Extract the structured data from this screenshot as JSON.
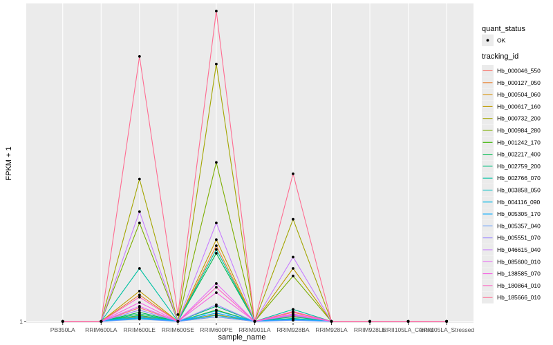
{
  "chart_data": {
    "type": "line",
    "title": "",
    "xlabel": "sample_name",
    "ylabel": "FPKM + 1",
    "y_tick_labels": [
      {
        "value": 1,
        "label": "1"
      }
    ],
    "ylim": [
      0.8,
      43
    ],
    "categories": [
      "PB350LA",
      "RRIM600LA",
      "RRIM600LE",
      "RRIM600SE",
      "RRIM600PE",
      "RRIM901LA",
      "RRIM928BA",
      "RRIM928LA",
      "RRIM928LE",
      "RRII105LA_Control",
      "RRII105LA_Stressed"
    ],
    "grid": true,
    "legend_position": "right",
    "legends": [
      {
        "title": "quant_status",
        "entries": [
          "OK"
        ]
      },
      {
        "title": "tracking_id"
      }
    ],
    "series": [
      {
        "name": "Hb_000046_550",
        "color": "#F8766D",
        "values": [
          1,
          1,
          2.8,
          1,
          1.6,
          1,
          1.7,
          1,
          1,
          1,
          1
        ]
      },
      {
        "name": "Hb_000127_050",
        "color": "#EA8331",
        "values": [
          1,
          1,
          4.5,
          1,
          11.0,
          1,
          2.2,
          1,
          1,
          1,
          1
        ]
      },
      {
        "name": "Hb_000504_060",
        "color": "#D89000",
        "values": [
          1,
          1,
          1.6,
          1,
          1.9,
          1,
          1.25,
          1,
          1,
          1,
          1
        ]
      },
      {
        "name": "Hb_000617_160",
        "color": "#C09B00",
        "values": [
          1,
          1,
          5.0,
          1,
          11.8,
          1,
          8.0,
          1,
          1,
          1,
          1
        ]
      },
      {
        "name": "Hb_000732_200",
        "color": "#A3A500",
        "values": [
          1,
          1,
          19.8,
          1,
          35.0,
          1,
          14.5,
          1,
          1,
          1,
          1
        ]
      },
      {
        "name": "Hb_000984_280",
        "color": "#7CAE00",
        "values": [
          1,
          1,
          14.0,
          1,
          22.0,
          1,
          7.0,
          1,
          1,
          1,
          1
        ]
      },
      {
        "name": "Hb_001242_170",
        "color": "#39B600",
        "values": [
          1,
          1,
          1.8,
          1,
          2.5,
          1,
          1.3,
          1,
          1,
          1,
          1
        ]
      },
      {
        "name": "Hb_002217_400",
        "color": "#00BB4E",
        "values": [
          1,
          1,
          2.2,
          1,
          10.0,
          1,
          1.4,
          1,
          1,
          1,
          1
        ]
      },
      {
        "name": "Hb_002759_200",
        "color": "#00BF7D",
        "values": [
          1,
          1,
          2.0,
          1,
          3.0,
          1,
          1.6,
          1,
          1,
          1,
          1
        ]
      },
      {
        "name": "Hb_002766_070",
        "color": "#00C1A3",
        "values": [
          1,
          1,
          8.0,
          1,
          10.5,
          1,
          2.6,
          1,
          1,
          1,
          1
        ]
      },
      {
        "name": "Hb_003858_050",
        "color": "#00BFC4",
        "values": [
          1,
          1,
          1.4,
          1,
          1.8,
          1,
          1.2,
          1,
          1,
          1,
          1
        ]
      },
      {
        "name": "Hb_004116_090",
        "color": "#00B8E7",
        "values": [
          1,
          1,
          1.7,
          1,
          2.4,
          1,
          1.35,
          1,
          1,
          1,
          1
        ]
      },
      {
        "name": "Hb_005305_170",
        "color": "#00A9FF",
        "values": [
          1,
          1,
          1.5,
          1,
          2.1,
          1,
          1.3,
          1,
          1,
          1,
          1
        ]
      },
      {
        "name": "Hb_005357_040",
        "color": "#619CFF",
        "values": [
          1,
          1,
          1.3,
          1,
          1.6,
          1,
          1.15,
          1,
          1,
          1,
          1
        ]
      },
      {
        "name": "Hb_005551_070",
        "color": "#9F8CFF",
        "values": [
          1,
          1,
          2.5,
          1,
          3.2,
          1,
          1.8,
          1,
          1,
          1,
          1
        ]
      },
      {
        "name": "Hb_046615_040",
        "color": "#C77CFF",
        "values": [
          1,
          1,
          15.5,
          1,
          14.0,
          1,
          9.5,
          1,
          1,
          1,
          1
        ]
      },
      {
        "name": "Hb_085600_010",
        "color": "#E76BF3",
        "values": [
          1,
          1,
          3.0,
          1,
          6.0,
          1,
          1.9,
          1,
          1,
          1,
          1
        ]
      },
      {
        "name": "Hb_138585_070",
        "color": "#F564E3",
        "values": [
          1,
          1,
          3.5,
          1,
          4.8,
          1,
          2.0,
          1,
          1,
          1,
          1
        ]
      },
      {
        "name": "Hb_180864_010",
        "color": "#FF61C3",
        "values": [
          1,
          1,
          4.2,
          1,
          5.5,
          1,
          2.3,
          1,
          1,
          1,
          1
        ]
      },
      {
        "name": "Hb_185666_010",
        "color": "#FF6C91",
        "values": [
          1,
          1,
          36.0,
          1.9,
          42.0,
          1,
          20.5,
          1,
          1,
          1,
          1
        ]
      }
    ]
  }
}
